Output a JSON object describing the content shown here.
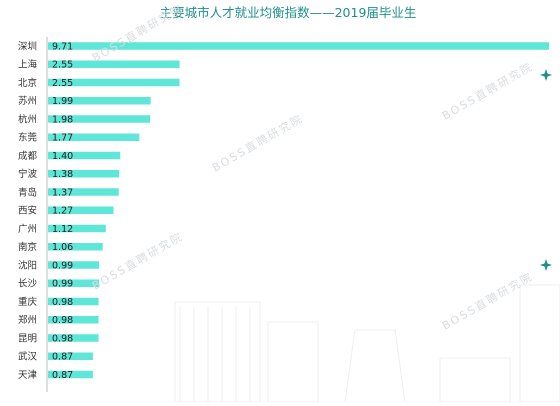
{
  "chart_data": {
    "type": "bar",
    "orientation": "horizontal",
    "title": "主要城市人才就业均衡指数——2019届毕业生",
    "categories": [
      "深圳",
      "上海",
      "北京",
      "苏州",
      "杭州",
      "东莞",
      "成都",
      "宁波",
      "青岛",
      "西安",
      "广州",
      "南京",
      "沈阳",
      "长沙",
      "重庆",
      "郑州",
      "昆明",
      "武汉",
      "天津"
    ],
    "values": [
      9.71,
      2.55,
      2.55,
      1.99,
      1.98,
      1.77,
      1.4,
      1.38,
      1.37,
      1.27,
      1.12,
      1.06,
      0.99,
      0.99,
      0.98,
      0.98,
      0.98,
      0.87,
      0.87
    ],
    "value_labels": [
      "9.71",
      "2.55",
      "2.55",
      "1.99",
      "1.98",
      "1.77",
      "1.40",
      "1.38",
      "1.37",
      "1.27",
      "1.12",
      "1.06",
      "0.99",
      "0.99",
      "0.98",
      "0.98",
      "0.98",
      "0.87",
      "0.87"
    ],
    "xlim": [
      0,
      9.71
    ],
    "grid": false,
    "legend": "none",
    "bar_color": "#5ee6d8",
    "title_color": "#1f8f8a",
    "axis_color": "#bfbfbf"
  },
  "watermark": "BOSS直聘研究院"
}
